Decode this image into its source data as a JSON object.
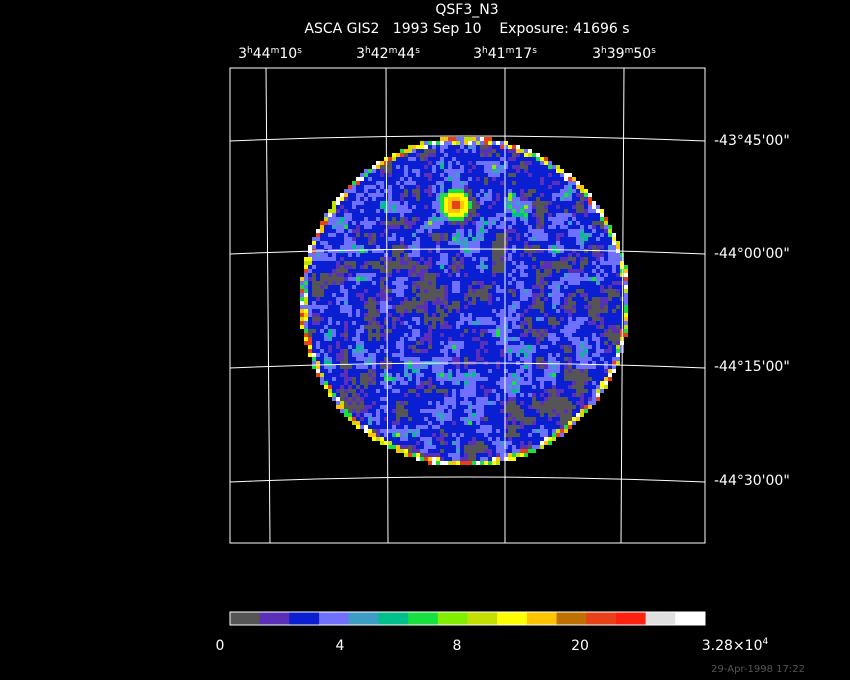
{
  "header": {
    "title": "QSF3_N3",
    "subtitle": "ASCA GIS2   1993 Sep 10    Exposure: 41696 s"
  },
  "ra_labels": [
    [
      "3",
      "h",
      "44",
      "m",
      "10",
      "s"
    ],
    [
      "3",
      "h",
      "42",
      "m",
      "44",
      "s"
    ],
    [
      "3",
      "h",
      "41",
      "m",
      "17",
      "s"
    ],
    [
      "3",
      "h",
      "39",
      "m",
      "50",
      "s"
    ]
  ],
  "dec_labels": [
    "-43°45'00\"",
    "-44°00'00\"",
    "-44°15'00\"",
    "-44°30'00\""
  ],
  "colorbar": {
    "colors": [
      "#555555",
      "#5a30b8",
      "#0a1ed2",
      "#7070ff",
      "#3c9ec4",
      "#00c08a",
      "#18e040",
      "#80f000",
      "#c4e000",
      "#ffff00",
      "#ffc400",
      "#c07000",
      "#e84018",
      "#ff2010",
      "#e0e0e0",
      "#ffffff"
    ],
    "labels": [
      "0",
      "4",
      "8",
      "20"
    ],
    "max_label": {
      "mantissa": "3.28×10",
      "exponent": "4"
    }
  },
  "footer": "29-Apr-1998 17:22"
}
